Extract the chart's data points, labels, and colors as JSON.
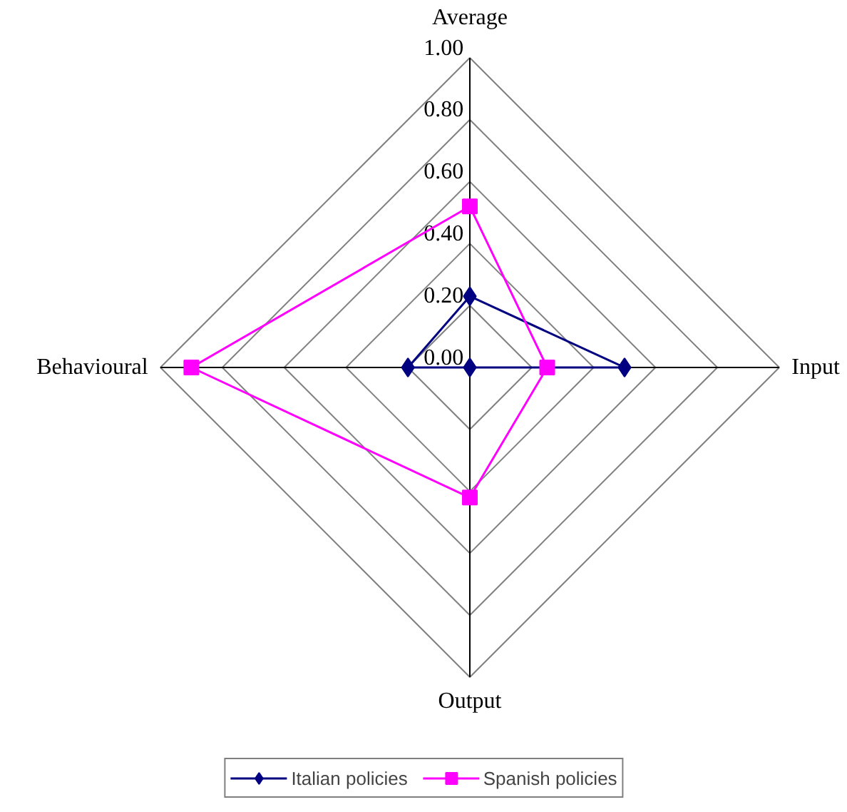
{
  "chart_data": {
    "type": "radar",
    "categories": [
      "Average",
      "Input",
      "Output",
      "Behavioural"
    ],
    "ylim": [
      0,
      1
    ],
    "yticks": [
      {
        "value": 0,
        "label": "0.00"
      },
      {
        "value": 0.2,
        "label": "0.20"
      },
      {
        "value": 0.4,
        "label": "0.40"
      },
      {
        "value": 0.6,
        "label": "0.60"
      },
      {
        "value": 0.8,
        "label": "0.80"
      },
      {
        "value": 1,
        "label": "1.00"
      }
    ],
    "grid": true,
    "legend": "bottom",
    "series": [
      {
        "name": "Italian policies",
        "color": "#000080",
        "marker": "diamond",
        "values": [
          0.23,
          0.5,
          0,
          0.2
        ]
      },
      {
        "name": "Spanish policies",
        "color": "#ff00ff",
        "marker": "square",
        "values": [
          0.52,
          0.25,
          0.42,
          0.9
        ]
      }
    ]
  }
}
